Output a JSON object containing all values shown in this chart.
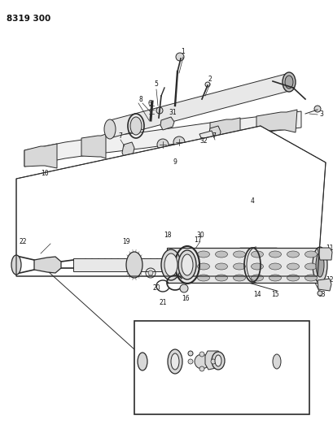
{
  "title": "8319 300",
  "bg": "#ffffff",
  "lc": "#2a2a2a",
  "tc": "#111111",
  "fig_w": 4.1,
  "fig_h": 5.33,
  "dpi": 100,
  "gray1": "#c0c0c0",
  "gray2": "#d8d8d8",
  "gray3": "#e8e8e8",
  "gray4": "#a8a8a8"
}
